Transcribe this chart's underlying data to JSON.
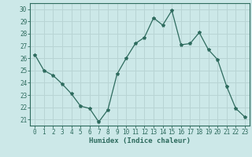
{
  "x": [
    0,
    1,
    2,
    3,
    4,
    5,
    6,
    7,
    8,
    9,
    10,
    11,
    12,
    13,
    14,
    15,
    16,
    17,
    18,
    19,
    20,
    21,
    22,
    23
  ],
  "y": [
    26.3,
    25.0,
    24.6,
    23.9,
    23.1,
    22.1,
    21.9,
    20.8,
    21.8,
    24.7,
    26.0,
    27.2,
    27.7,
    29.3,
    28.7,
    29.9,
    27.1,
    27.2,
    28.1,
    26.7,
    25.9,
    23.7,
    21.9,
    21.2
  ],
  "line_color": "#2e6b5e",
  "marker": "*",
  "marker_size": 3,
  "bg_color": "#cce8e8",
  "grid_color": "#b8d4d4",
  "axis_color": "#2e6b5e",
  "xlabel": "Humidex (Indice chaleur)",
  "xlim": [
    -0.5,
    23.5
  ],
  "ylim": [
    20.5,
    30.5
  ],
  "yticks": [
    21,
    22,
    23,
    24,
    25,
    26,
    27,
    28,
    29,
    30
  ],
  "xticks": [
    0,
    1,
    2,
    3,
    4,
    5,
    6,
    7,
    8,
    9,
    10,
    11,
    12,
    13,
    14,
    15,
    16,
    17,
    18,
    19,
    20,
    21,
    22,
    23
  ],
  "tick_fontsize": 5.5,
  "xlabel_fontsize": 6.5
}
